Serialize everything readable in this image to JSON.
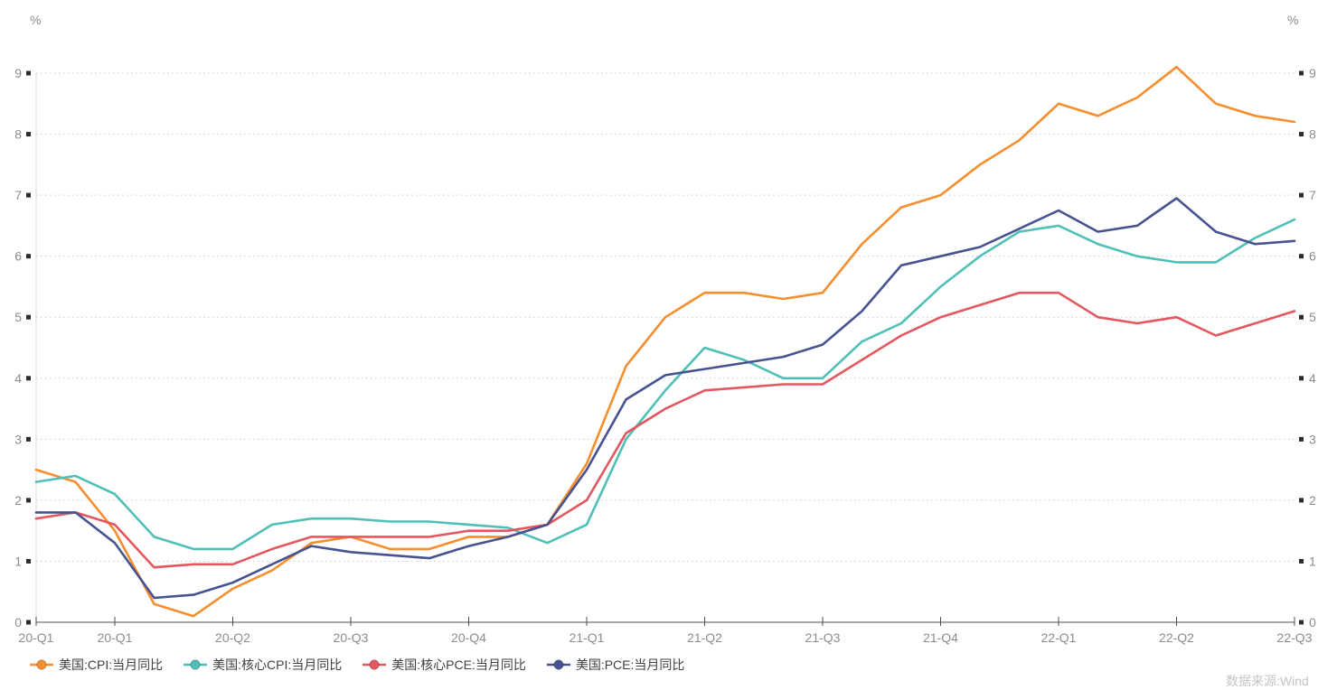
{
  "chart": {
    "y_unit_left": "%",
    "y_unit_right": "%",
    "watermark": "数据来源:Wind"
  },
  "style": {
    "background": "#ffffff",
    "grid_color": "#cccccc",
    "axis_bottom_color": "#4d4d4d",
    "axis_left_color": "#d8d8d8",
    "tick_square_color": "#2b2b2b",
    "axis_label_color": "#8c8c8c",
    "legend_text_color": "#404040",
    "watermark_color": "#c4c4c4"
  },
  "chart_data": {
    "type": "line",
    "title": "",
    "y_unit": "%",
    "ylim": [
      0,
      9
    ],
    "y_ticks": [
      0,
      1,
      2,
      3,
      4,
      5,
      6,
      7,
      8,
      9
    ],
    "grid": "dotted-horizontal",
    "legend_position": "bottom-left",
    "x_months": [
      "2020-01",
      "2020-02",
      "2020-03",
      "2020-04",
      "2020-05",
      "2020-06",
      "2020-07",
      "2020-08",
      "2020-09",
      "2020-10",
      "2020-11",
      "2020-12",
      "2021-01",
      "2021-02",
      "2021-03",
      "2021-04",
      "2021-05",
      "2021-06",
      "2021-07",
      "2021-08",
      "2021-09",
      "2021-10",
      "2021-11",
      "2021-12",
      "2022-01",
      "2022-02",
      "2022-03",
      "2022-04",
      "2022-05",
      "2022-06",
      "2022-07",
      "2022-08",
      "2022-09"
    ],
    "x_tick_labels": [
      "20-Q1",
      "20-Q1",
      "20-Q2",
      "20-Q3",
      "20-Q4",
      "21-Q1",
      "21-Q2",
      "21-Q3",
      "21-Q4",
      "22-Q1",
      "22-Q2",
      "22-Q3"
    ],
    "x_tick_month_index": [
      0,
      2,
      5,
      8,
      11,
      14,
      17,
      20,
      23,
      26,
      29,
      32
    ],
    "series": [
      {
        "name": "美国:CPI:当月同比",
        "color": "#F78E2D",
        "values": [
          2.5,
          2.3,
          1.5,
          0.3,
          0.1,
          0.55,
          0.85,
          1.3,
          1.4,
          1.2,
          1.2,
          1.4,
          1.4,
          1.6,
          2.6,
          4.2,
          5.0,
          5.4,
          5.4,
          5.3,
          5.4,
          6.2,
          6.8,
          7.0,
          7.5,
          7.9,
          8.5,
          8.3,
          8.6,
          9.1,
          8.5,
          8.3,
          8.2
        ]
      },
      {
        "name": "美国:核心CPI:当月同比",
        "color": "#4FC0B7",
        "values": [
          2.3,
          2.4,
          2.1,
          1.4,
          1.2,
          1.2,
          1.6,
          1.7,
          1.7,
          1.65,
          1.65,
          1.6,
          1.55,
          1.3,
          1.6,
          3.0,
          3.8,
          4.5,
          4.3,
          4.0,
          4.0,
          4.6,
          4.9,
          5.5,
          6.0,
          6.4,
          6.5,
          6.2,
          6.0,
          5.9,
          5.9,
          6.3,
          6.6
        ]
      },
      {
        "name": "美国:核心PCE:当月同比",
        "color": "#E3585F",
        "values": [
          1.7,
          1.8,
          1.6,
          0.9,
          0.95,
          0.95,
          1.2,
          1.4,
          1.4,
          1.4,
          1.4,
          1.5,
          1.5,
          1.6,
          2.0,
          3.1,
          3.5,
          3.8,
          3.85,
          3.9,
          3.9,
          4.3,
          4.7,
          5.0,
          5.2,
          5.4,
          5.4,
          5.0,
          4.9,
          5.0,
          4.7,
          4.9,
          5.1
        ]
      },
      {
        "name": "美国:PCE:当月同比",
        "color": "#465390",
        "values": [
          1.8,
          1.8,
          1.3,
          0.4,
          0.45,
          0.65,
          0.95,
          1.25,
          1.15,
          1.1,
          1.05,
          1.25,
          1.4,
          1.6,
          2.5,
          3.65,
          4.05,
          4.15,
          4.25,
          4.35,
          4.55,
          5.1,
          5.85,
          6.0,
          6.15,
          6.45,
          6.75,
          6.4,
          6.5,
          6.95,
          6.4,
          6.2,
          6.25
        ]
      }
    ]
  }
}
